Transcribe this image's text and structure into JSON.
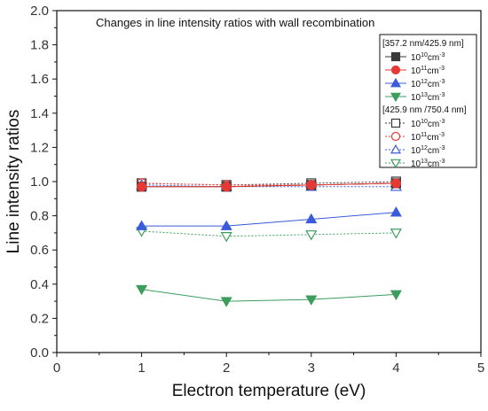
{
  "chart_data": {
    "type": "line",
    "title": "Changes in line intensity ratios with wall recombination",
    "xlabel": "Electron temperature (eV)",
    "ylabel": "Line intensity ratios",
    "xlim": [
      0,
      5
    ],
    "ylim": [
      0.0,
      2.0
    ],
    "xticks": [
      "0",
      "1",
      "2",
      "3",
      "4",
      "5"
    ],
    "yticks": [
      "0.0",
      "0.2",
      "0.4",
      "0.6",
      "0.8",
      "1.0",
      "1.2",
      "1.4",
      "1.6",
      "1.8",
      "2.0"
    ],
    "x": [
      1,
      2,
      3,
      4
    ],
    "grid": false,
    "legend_position": "top-right",
    "legend_groups": [
      {
        "title": "[357.2 nm/425.9 nm]",
        "series": [
          {
            "base": "10",
            "exp": "10",
            "unit": "cm",
            "unit_exp": "-3",
            "color": "#3a3a3a",
            "marker": "square",
            "filled": true,
            "line": "solid",
            "values": [
              0.97,
              0.97,
              0.98,
              0.99
            ]
          },
          {
            "base": "10",
            "exp": "11",
            "unit": "cm",
            "unit_exp": "-3",
            "color": "#e53935",
            "marker": "circle",
            "filled": true,
            "line": "solid",
            "values": [
              0.97,
              0.97,
              0.98,
              0.99
            ]
          },
          {
            "base": "10",
            "exp": "12",
            "unit": "cm",
            "unit_exp": "-3",
            "color": "#3b5bdb",
            "marker": "triangle-up",
            "filled": true,
            "line": "solid",
            "values": [
              0.74,
              0.74,
              0.78,
              0.82
            ]
          },
          {
            "base": "10",
            "exp": "13",
            "unit": "cm",
            "unit_exp": "-3",
            "color": "#3c9d5c",
            "marker": "triangle-down",
            "filled": true,
            "line": "solid",
            "values": [
              0.37,
              0.3,
              0.31,
              0.34
            ]
          }
        ]
      },
      {
        "title": "[425.9 nm /750.4 nm]",
        "series": [
          {
            "base": "10",
            "exp": "10",
            "unit": "cm",
            "unit_exp": "-3",
            "color": "#3a3a3a",
            "marker": "square",
            "filled": false,
            "line": "dotted",
            "values": [
              0.99,
              0.98,
              0.99,
              1.0
            ]
          },
          {
            "base": "10",
            "exp": "11",
            "unit": "cm",
            "unit_exp": "-3",
            "color": "#e53935",
            "marker": "circle",
            "filled": false,
            "line": "dotted",
            "values": [
              0.99,
              0.98,
              0.98,
              0.99
            ]
          },
          {
            "base": "10",
            "exp": "12",
            "unit": "cm",
            "unit_exp": "-3",
            "color": "#3b5bdb",
            "marker": "triangle-up",
            "filled": false,
            "line": "dotted",
            "values": [
              0.98,
              0.97,
              0.97,
              0.97
            ]
          },
          {
            "base": "10",
            "exp": "13",
            "unit": "cm",
            "unit_exp": "-3",
            "color": "#3c9d5c",
            "marker": "triangle-down",
            "filled": false,
            "line": "dotted",
            "values": [
              0.71,
              0.68,
              0.69,
              0.7
            ]
          }
        ]
      }
    ]
  }
}
